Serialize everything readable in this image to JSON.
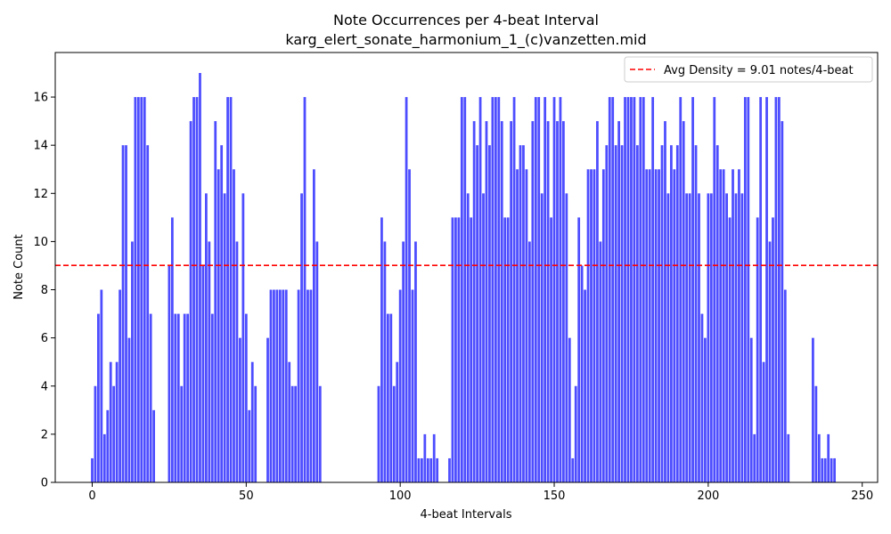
{
  "chart_data": {
    "type": "bar",
    "title": "Note Occurrences per 4-beat Interval",
    "subtitle": "karg_elert_sonate_harmonium_1_(c)vanzetten.mid",
    "xlabel": "4-beat Intervals",
    "ylabel": "Note Count",
    "xlim": [
      -12,
      255
    ],
    "ylim": [
      0,
      17.85
    ],
    "xticks": [
      0,
      50,
      100,
      150,
      200,
      250
    ],
    "yticks": [
      0,
      2,
      4,
      6,
      8,
      10,
      12,
      14,
      16
    ],
    "bar_color": "#4d4dff",
    "avg_line": {
      "value": 9.01,
      "label": "Avg Density = 9.01 notes/4-beat",
      "color": "#ff0000",
      "style": "dashed"
    },
    "legend_position": "top-right",
    "x_start": 0,
    "values": [
      1,
      4,
      7,
      8,
      2,
      3,
      5,
      4,
      5,
      8,
      14,
      14,
      6,
      10,
      16,
      16,
      16,
      16,
      14,
      7,
      3,
      0,
      0,
      0,
      0,
      9,
      11,
      7,
      7,
      4,
      7,
      7,
      15,
      16,
      16,
      17,
      9,
      12,
      10,
      7,
      15,
      13,
      14,
      12,
      16,
      16,
      13,
      10,
      6,
      12,
      7,
      3,
      5,
      4,
      0,
      0,
      0,
      6,
      8,
      8,
      8,
      8,
      8,
      8,
      5,
      4,
      4,
      8,
      12,
      16,
      8,
      8,
      13,
      10,
      4,
      0,
      0,
      0,
      0,
      0,
      0,
      0,
      0,
      0,
      0,
      0,
      0,
      0,
      0,
      0,
      0,
      0,
      0,
      4,
      11,
      10,
      7,
      7,
      4,
      5,
      8,
      10,
      16,
      13,
      8,
      10,
      1,
      1,
      2,
      1,
      1,
      2,
      1,
      0,
      0,
      0,
      1,
      11,
      11,
      11,
      16,
      16,
      12,
      11,
      15,
      14,
      16,
      12,
      15,
      14,
      16,
      16,
      16,
      15,
      11,
      11,
      15,
      16,
      13,
      14,
      14,
      13,
      10,
      15,
      16,
      16,
      12,
      16,
      15,
      11,
      16,
      15,
      16,
      15,
      12,
      6,
      1,
      4,
      11,
      9,
      8,
      13,
      13,
      13,
      15,
      10,
      13,
      14,
      16,
      16,
      14,
      15,
      14,
      16,
      16,
      16,
      16,
      14,
      16,
      16,
      13,
      13,
      16,
      13,
      13,
      14,
      15,
      12,
      14,
      13,
      14,
      16,
      15,
      12,
      12,
      16,
      14,
      12,
      7,
      6,
      12,
      12,
      16,
      14,
      13,
      13,
      12,
      11,
      13,
      12,
      13,
      12,
      16,
      16,
      6,
      2,
      11,
      16,
      5,
      16,
      10,
      11,
      16,
      16,
      15,
      8,
      2,
      0,
      0,
      0,
      0,
      0,
      0,
      0,
      6,
      4,
      2,
      1,
      1,
      2,
      1,
      1
    ]
  }
}
